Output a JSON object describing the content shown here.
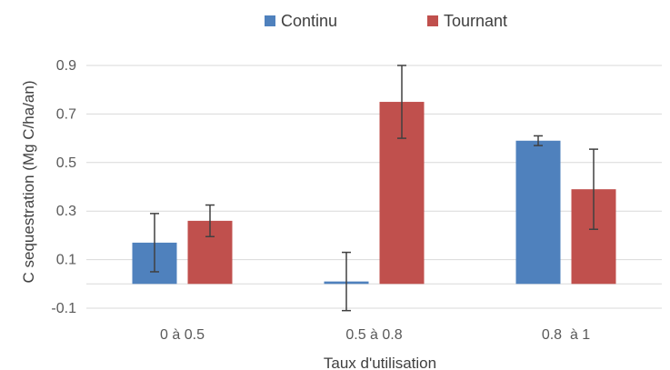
{
  "chart_data": {
    "type": "bar",
    "categories": [
      "0 à 0.5",
      "0.5 à 0.8",
      "0.8  à 1"
    ],
    "series": [
      {
        "name": "Continu",
        "color": "#4f81bd",
        "values": [
          0.17,
          0.01,
          0.59
        ],
        "error": [
          0.12,
          0.12,
          0.02
        ]
      },
      {
        "name": "Tournant",
        "color": "#c0504d",
        "values": [
          0.26,
          0.75,
          0.39
        ],
        "error": [
          0.065,
          0.15,
          0.165
        ]
      }
    ],
    "title": "",
    "xlabel": "Taux d'utilisation",
    "ylabel": "C sequestration (Mg C/ha/an)",
    "ylim": [
      -0.1,
      0.9
    ],
    "yticks": [
      -0.1,
      0.1,
      0.3,
      0.5,
      0.7,
      0.9
    ],
    "ytick_labels": [
      "-0.1",
      "0.1",
      "0.3",
      "0.5",
      "0.7",
      "0.9"
    ],
    "grid": true,
    "legend_position": "top-center"
  }
}
